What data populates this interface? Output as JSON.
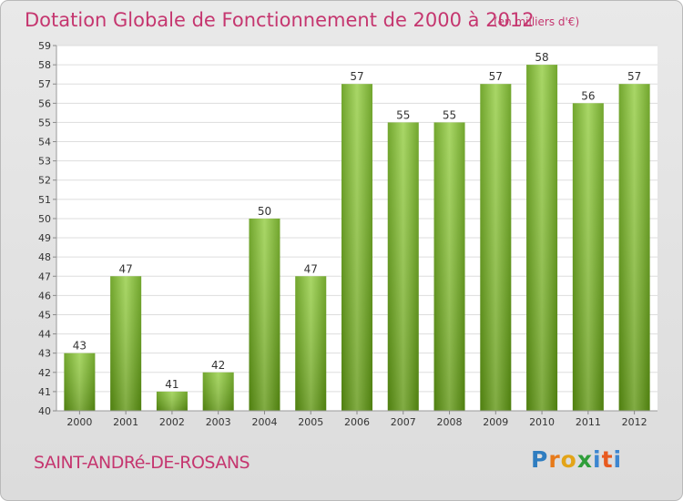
{
  "header": {
    "title": "Dotation Globale de Fonctionnement de 2000 à 2012",
    "unit": "(en milliers d'€)"
  },
  "footer": {
    "commune": "SAINT-ANDRé-DE-ROSANS",
    "logo_letters": [
      "P",
      "r",
      "o",
      "x",
      "i",
      "t",
      "i"
    ]
  },
  "colors": {
    "title": "#c5366f",
    "bar_light": "#9dd152",
    "bar_dark": "#5f9a12",
    "grid": "#dddddd",
    "axis_text": "#333333"
  },
  "chart_data": {
    "type": "bar",
    "title": "Dotation Globale de Fonctionnement de 2000 à 2012",
    "subtitle": "(en milliers d'€)",
    "categories": [
      "2000",
      "2001",
      "2002",
      "2003",
      "2004",
      "2005",
      "2006",
      "2007",
      "2008",
      "2009",
      "2010",
      "2011",
      "2012"
    ],
    "values": [
      43,
      47,
      41,
      42,
      50,
      47,
      57,
      55,
      55,
      57,
      58,
      56,
      57
    ],
    "ylim": [
      40,
      59
    ],
    "yticks": [
      40,
      41,
      42,
      43,
      44,
      45,
      46,
      47,
      48,
      49,
      50,
      51,
      52,
      53,
      54,
      55,
      56,
      57,
      58,
      59
    ],
    "grid": true,
    "legend": "none",
    "data_labels": true
  }
}
